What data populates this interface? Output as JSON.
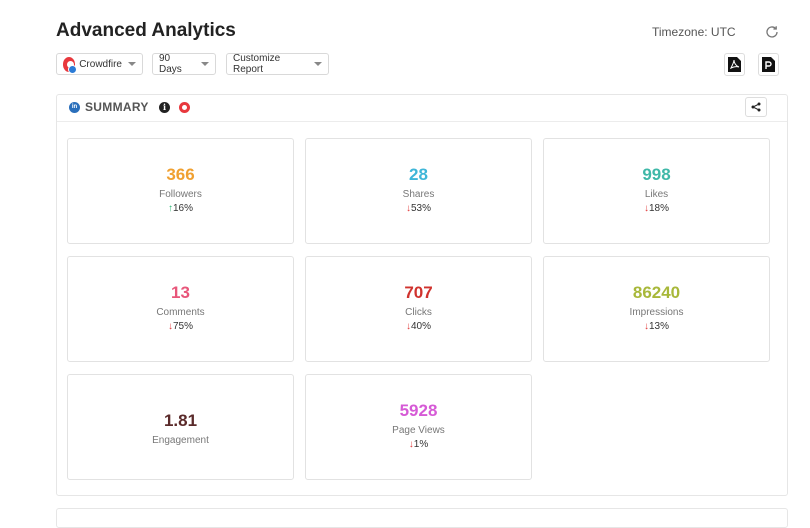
{
  "header": {
    "title": "Advanced Analytics",
    "timezone": "Timezone: UTC"
  },
  "filters": {
    "account": "Crowdfire",
    "range": "90 Days",
    "customize": "Customize Report"
  },
  "summary": {
    "title": "SUMMARY",
    "info": "i"
  },
  "metrics": [
    {
      "value": "366",
      "label": "Followers",
      "arrow": "↑",
      "change": "16%",
      "color": "#f0a030",
      "dir": "up"
    },
    {
      "value": "28",
      "label": "Shares",
      "arrow": "↓",
      "change": "53%",
      "color": "#3fb6d8",
      "dir": "down"
    },
    {
      "value": "998",
      "label": "Likes",
      "arrow": "↓",
      "change": "18%",
      "color": "#3fb8a8",
      "dir": "down"
    },
    {
      "value": "13",
      "label": "Comments",
      "arrow": "↓",
      "change": "75%",
      "color": "#e8567a",
      "dir": "down"
    },
    {
      "value": "707",
      "label": "Clicks",
      "arrow": "↓",
      "change": "40%",
      "color": "#d0332e",
      "dir": "down"
    },
    {
      "value": "86240",
      "label": "Impressions",
      "arrow": "↓",
      "change": "13%",
      "color": "#a8b83a",
      "dir": "down"
    },
    {
      "value": "1.81",
      "label": "Engagement",
      "arrow": "",
      "change": "",
      "color": "#5a2a2a",
      "dir": ""
    },
    {
      "value": "5928",
      "label": "Page Views",
      "arrow": "↓",
      "change": "1%",
      "color": "#d65ad6",
      "dir": "down"
    }
  ],
  "icons": {
    "refresh": "refresh-icon",
    "pdf": "pdf-export-icon",
    "ppt": "ppt-export-icon",
    "share": "share-icon"
  }
}
